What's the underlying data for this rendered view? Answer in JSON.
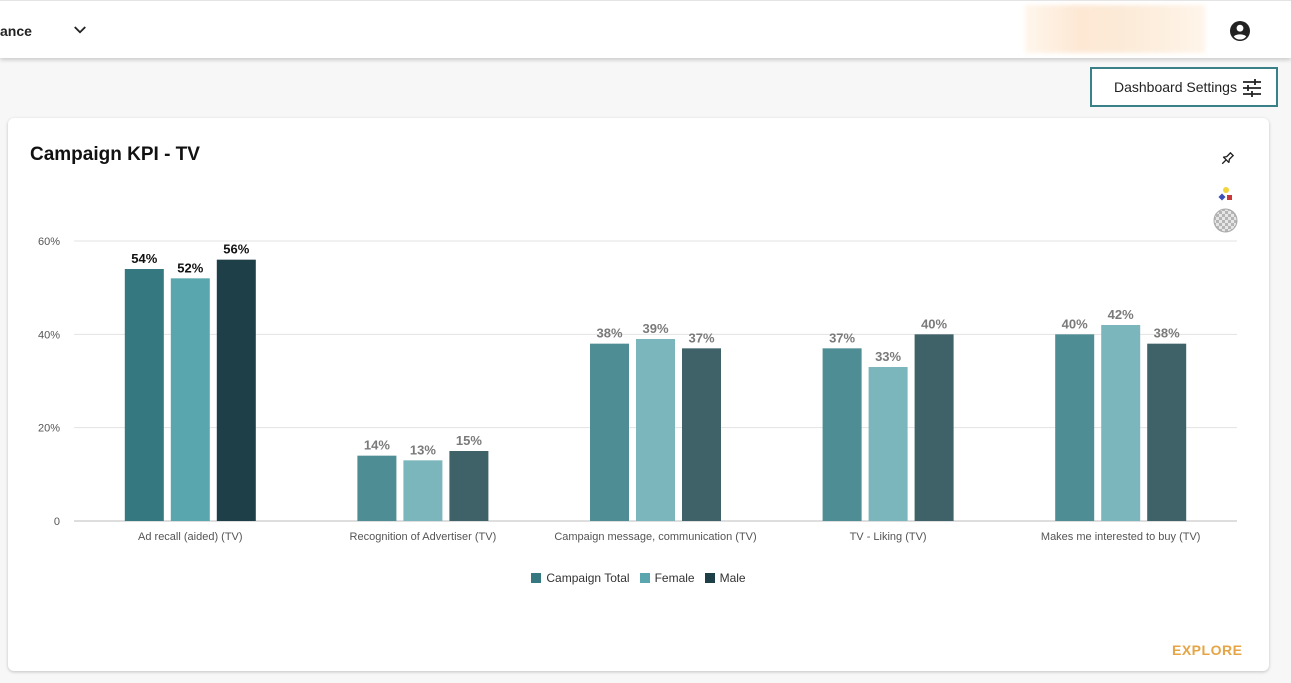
{
  "header": {
    "title_fragment": "ance",
    "chevron_icon": "chevron-down-icon",
    "account_icon": "account-circle-icon"
  },
  "toolbar": {
    "settings_label": "Dashboard Settings",
    "settings_icon": "sliders-icon",
    "accent_color": "#3a8088"
  },
  "card": {
    "title": "Campaign KPI - TV",
    "icons": [
      "pin-icon",
      "shapes-icon",
      "checkerboard-icon"
    ],
    "explore_label": "EXPLORE",
    "explore_color": "#e6a445"
  },
  "chart_data": {
    "type": "bar",
    "categories": [
      "Ad recall (aided) (TV)",
      "Recognition of Advertiser (TV)",
      "Campaign message, communication (TV)",
      "TV - Liking (TV)",
      "Makes me interested to buy (TV)"
    ],
    "series": [
      {
        "name": "Campaign Total",
        "values": [
          54,
          14,
          38,
          37,
          40
        ],
        "color": "#36787f",
        "muted_color": "#4e8d94"
      },
      {
        "name": "Female",
        "values": [
          52,
          13,
          39,
          33,
          42
        ],
        "color": "#5aa6ae",
        "muted_color": "#7bb6bc"
      },
      {
        "name": "Male",
        "values": [
          56,
          15,
          37,
          40,
          38
        ],
        "color": "#1e3f47",
        "muted_color": "#3f6268"
      }
    ],
    "value_labels": [
      [
        "54%",
        "14%",
        "38%",
        "37%",
        "40%"
      ],
      [
        "52%",
        "13%",
        "39%",
        "33%",
        "42%"
      ],
      [
        "56%",
        "15%",
        "37%",
        "40%",
        "38%"
      ]
    ],
    "highlighted_category": "Ad recall (aided) (TV)",
    "y_ticks": [
      "0",
      "20%",
      "40%",
      "60%"
    ],
    "ylim": [
      0,
      60
    ],
    "grid": true,
    "legend_position": "bottom-center"
  }
}
